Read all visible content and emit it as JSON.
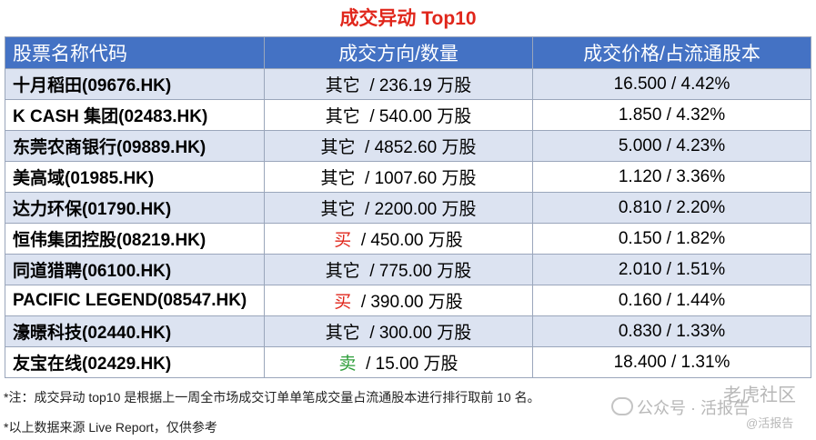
{
  "title": "成交异动 Top10",
  "headers": [
    "股票名称代码",
    "成交方向/数量",
    "成交价格/占流通股本"
  ],
  "rows": [
    {
      "name": "十月稻田(09676.HK)",
      "direction": "其它",
      "dir_type": "other",
      "quantity": "/ 236.19 万股",
      "price": "16.500 / 4.42%"
    },
    {
      "name": "K CASH 集团(02483.HK)",
      "direction": "其它",
      "dir_type": "other",
      "quantity": "/ 540.00 万股",
      "price": "1.850 / 4.32%"
    },
    {
      "name": "东莞农商银行(09889.HK)",
      "direction": "其它",
      "dir_type": "other",
      "quantity": "/ 4852.60 万股",
      "price": "5.000 / 4.23%"
    },
    {
      "name": "美高域(01985.HK)",
      "direction": "其它",
      "dir_type": "other",
      "quantity": "/ 1007.60 万股",
      "price": "1.120 / 3.36%"
    },
    {
      "name": "达力环保(01790.HK)",
      "direction": "其它",
      "dir_type": "other",
      "quantity": "/ 2200.00 万股",
      "price": "0.810 / 2.20%"
    },
    {
      "name": "恒伟集团控股(08219.HK)",
      "direction": "买",
      "dir_type": "buy",
      "quantity": "/ 450.00 万股",
      "price": "0.150 / 1.82%"
    },
    {
      "name": "同道猎聘(06100.HK)",
      "direction": "其它",
      "dir_type": "other",
      "quantity": "/ 775.00 万股",
      "price": "2.010 / 1.51%"
    },
    {
      "name": "PACIFIC LEGEND(08547.HK)",
      "direction": "买",
      "dir_type": "buy",
      "quantity": "/ 390.00 万股",
      "price": "0.160 / 1.44%"
    },
    {
      "name": "濠暻科技(02440.HK)",
      "direction": "其它",
      "dir_type": "other",
      "quantity": "/ 300.00 万股",
      "price": "0.830 / 1.33%"
    },
    {
      "name": "友宝在线(02429.HK)",
      "direction": "卖",
      "dir_type": "sell",
      "quantity": "/ 15.00 万股",
      "price": "18.400 / 1.31%"
    }
  ],
  "notes": [
    "*注：成交异动 top10 是根据上一周全市场成交订单单笔成交量占流通股本进行排行取前 10 名。",
    "*以上数据来源 Live Report，仅供参考"
  ],
  "watermark": {
    "wechat": "公众号 · 活报告",
    "site": "老虎社区",
    "handle": "@活报告"
  },
  "colors": {
    "header_bg": "#4472c4",
    "title": "#e0261b",
    "buy": "#e0261b",
    "sell": "#2e9e3a",
    "alt_row": "#dce3f1"
  }
}
